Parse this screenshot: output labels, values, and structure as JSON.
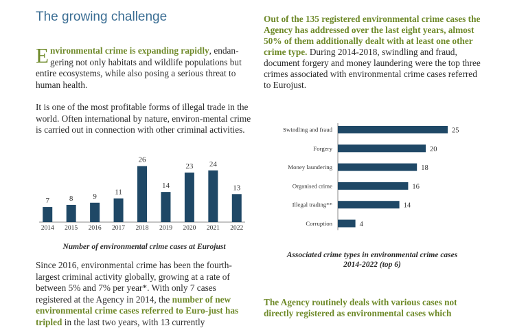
{
  "page": {
    "title": "The growing challenge"
  },
  "left": {
    "p1_lead": "nvironmental crime is expanding rapidly",
    "p1_dropcap": "E",
    "p1_rest_line1": ", endan-",
    "p1_rest": "gering not only habitats and wildlife populations but entire ecosystems, while also posing a serious threat to human health.",
    "p2": "It is one of the most profitable forms of illegal trade in the world.  Often international by nature, environ-mental crime is carried out in connection with other criminal activities.",
    "p3_text": "Since 2016, environmental crime has been the fourth-largest criminal activity globally, growing at a rate of between 5% and 7% per year*. With only 7 cases registered at the Agency in 2014, the ",
    "p3_highlight": "number of new environmental crime cases referred to Euro-just has tripled",
    "p3_tail": " in the last two years, with 13 currently"
  },
  "right": {
    "p1_highlight": "Out of the 135 registered environmental crime cases the Agency has addressed over the last eight years, almost 50% of them additionally dealt with at least one other crime type.",
    "p1_rest": " During 2014-2018, swindling and fraud, document forgery and money laundering were the top three crimes associated with environmental crime cases referred to Eurojust.",
    "p2_highlight": "The Agency routinely deals with various cases not directly registered as environmental cases which"
  },
  "chart_data": [
    {
      "type": "bar",
      "title": "Number of environmental crime cases at Eurojust",
      "categories": [
        "2014",
        "2015",
        "2016",
        "2017",
        "2018",
        "2019",
        "2020",
        "2021",
        "2022"
      ],
      "values": [
        7,
        8,
        9,
        11,
        26,
        14,
        23,
        24,
        13
      ],
      "ylim": [
        0,
        30
      ],
      "bar_color": "#1f4866"
    },
    {
      "type": "bar",
      "orientation": "horizontal",
      "title": "Associated crime types in environmental crime cases 2014-2022 (top 6)",
      "title_line1": "Associated crime types in environmental crime cases",
      "title_line2": "2014-2022 (top 6)",
      "categories": [
        "Swindling and fraud",
        "Forgery",
        "Money laundering",
        "Organised crime",
        "Illegal trading**",
        "Corruption"
      ],
      "values": [
        25,
        20,
        18,
        16,
        14,
        4
      ],
      "xlim": [
        0,
        25
      ],
      "bar_color": "#1f4866"
    }
  ]
}
